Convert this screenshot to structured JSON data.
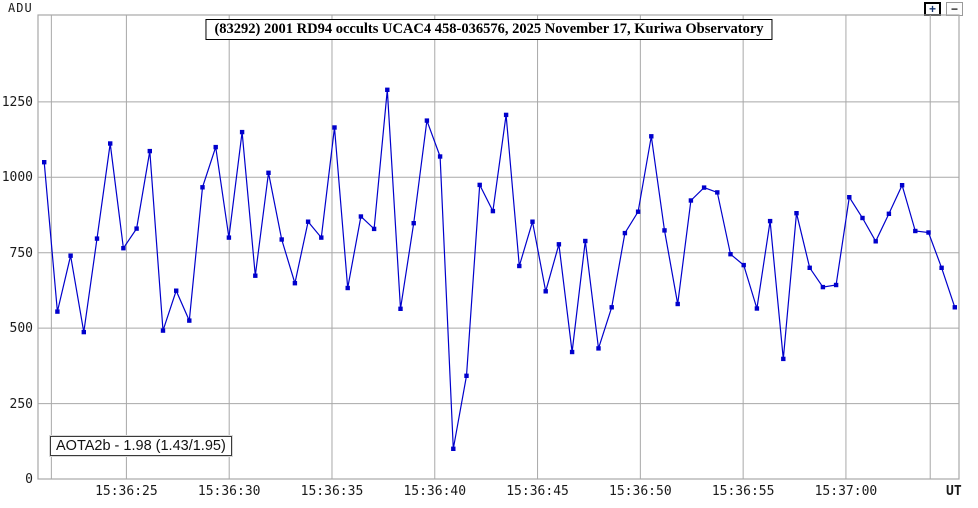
{
  "toolbar": {
    "zoom_in": "+",
    "zoom_out": "−"
  },
  "chart_data": {
    "type": "line",
    "title": "(83292) 2001 RD94 occults UCAC4 458-036576, 2025 November 17, Kuriwa Observatory",
    "ylabel": "ADU",
    "xlabel": "UT",
    "annotation": "AOTA2b - 1.98 (1.43/1.95)",
    "grid": true,
    "legend": "none",
    "line_color": "#0000cc",
    "grid_color": "#a8a8a8",
    "yticks": [
      0,
      250,
      500,
      750,
      1000,
      1250
    ],
    "ylim": [
      0,
      1538
    ],
    "x_unit": "seconds after 15:36:00 UT",
    "xlim_s": [
      20.7,
      65.5
    ],
    "xticks": [
      {
        "s": 25,
        "label": "15:36:25"
      },
      {
        "s": 30,
        "label": "15:36:30"
      },
      {
        "s": 35,
        "label": "15:36:35"
      },
      {
        "s": 40,
        "label": "15:36:40"
      },
      {
        "s": 45,
        "label": "15:36:45"
      },
      {
        "s": 50,
        "label": "15:36:50"
      },
      {
        "s": 55,
        "label": "15:36:55"
      },
      {
        "s": 60,
        "label": "15:37:00"
      }
    ],
    "extra_vlines_s": [
      21.35,
      64.1
    ],
    "series": [
      {
        "name": "light-curve-adu",
        "t_start_s": 21.0,
        "dt_s": 0.642,
        "values": [
          1050,
          555,
          740,
          487,
          797,
          1112,
          765,
          830,
          1087,
          492,
          624,
          525,
          967,
          1100,
          800,
          1150,
          674,
          1015,
          794,
          649,
          853,
          800,
          1165,
          633,
          870,
          829,
          1290,
          564,
          848,
          1188,
          1069,
          100,
          342,
          975,
          888,
          1207,
          706,
          853,
          622,
          778,
          421,
          789,
          433,
          569,
          815,
          886,
          1136,
          824,
          580,
          923,
          966,
          950,
          745,
          709,
          565,
          855,
          398,
          881,
          700,
          636,
          643,
          934,
          865,
          788,
          879,
          974,
          822,
          817,
          700,
          569
        ]
      }
    ]
  }
}
